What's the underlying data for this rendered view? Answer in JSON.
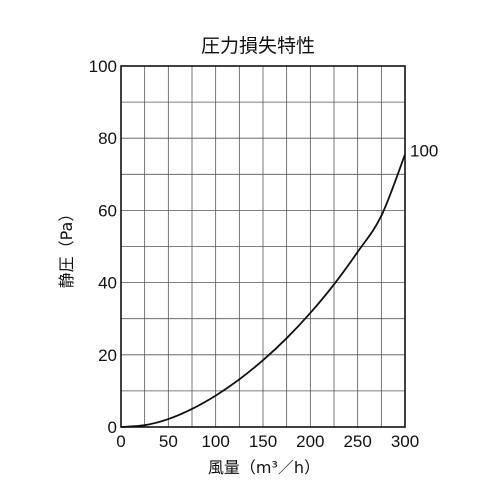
{
  "chart_data": {
    "type": "line",
    "title": "圧力損失特性",
    "xlabel": "風量（m³／h）",
    "ylabel": "静圧（Pa）",
    "xlim": [
      0,
      300
    ],
    "ylim": [
      0,
      100
    ],
    "x_ticks": [
      0,
      50,
      100,
      150,
      200,
      250,
      300
    ],
    "y_ticks": [
      0,
      20,
      40,
      60,
      80,
      100
    ],
    "x_minor_step": 25,
    "y_minor_step": 10,
    "grid": true,
    "series": [
      {
        "name": "100",
        "x": [
          0,
          25,
          50,
          75,
          100,
          125,
          150,
          175,
          200,
          225,
          250,
          275,
          300
        ],
        "y": [
          0,
          0.5,
          2.2,
          5,
          8.7,
          13.2,
          18.5,
          24.6,
          31.6,
          39.5,
          48.5,
          58.5,
          75.5
        ]
      }
    ]
  }
}
